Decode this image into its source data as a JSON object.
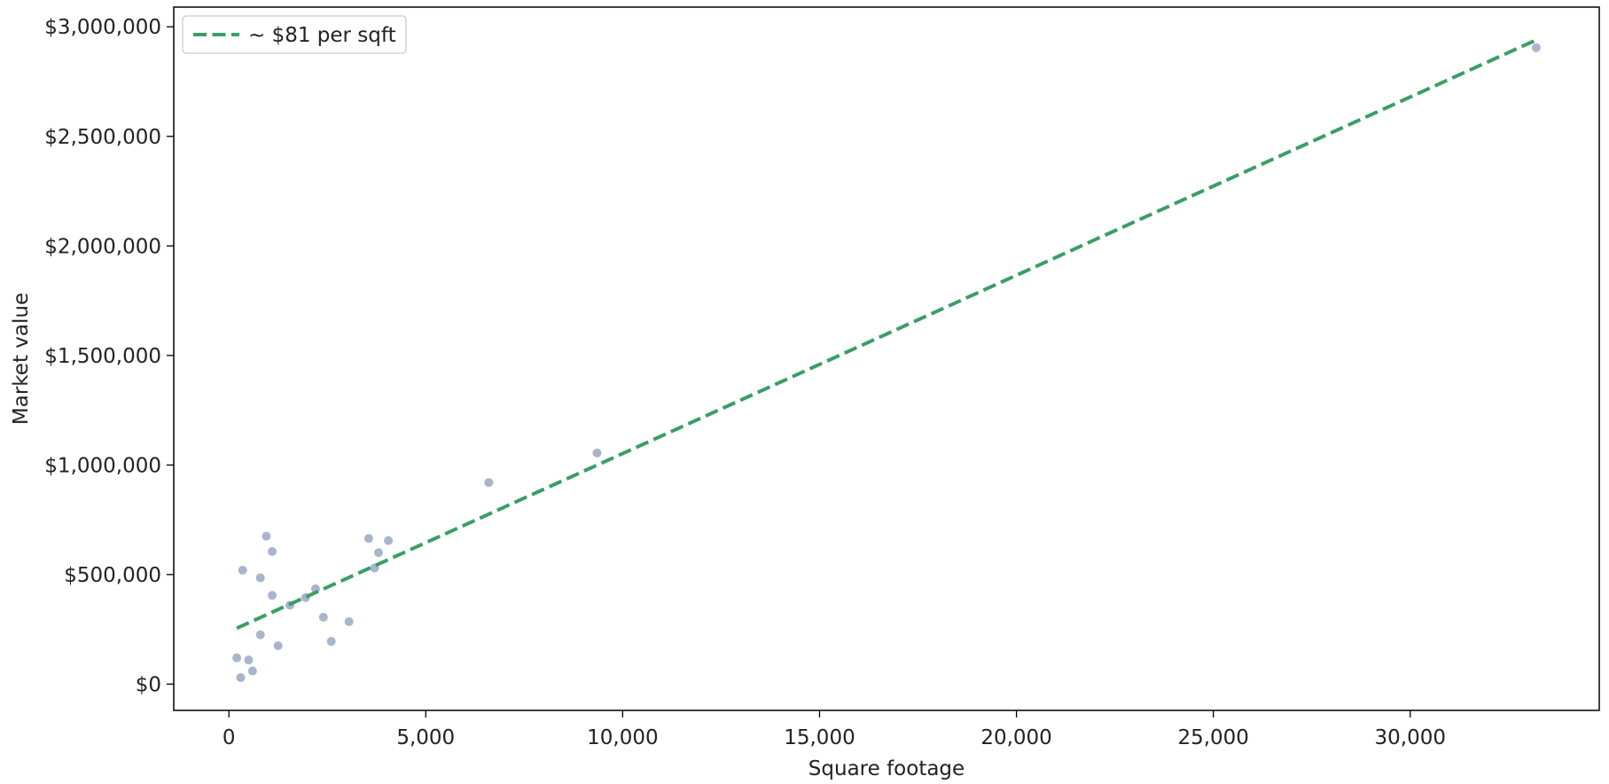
{
  "chart_data": {
    "type": "scatter",
    "title": "",
    "xlabel": "Square footage",
    "ylabel": "Market value",
    "xlim": [
      -1400,
      34800
    ],
    "ylim": [
      -120000,
      3090000
    ],
    "x_ticks": [
      0,
      5000,
      10000,
      15000,
      20000,
      25000,
      30000
    ],
    "x_tick_labels": [
      "0",
      "5,000",
      "10,000",
      "15,000",
      "20,000",
      "25,000",
      "30,000"
    ],
    "y_ticks": [
      0,
      500000,
      1000000,
      1500000,
      2000000,
      2500000,
      3000000
    ],
    "y_tick_labels": [
      "$0",
      "$500,000",
      "$1,000,000",
      "$1,500,000",
      "$2,000,000",
      "$2,500,000",
      "$3,000,000"
    ],
    "grid": false,
    "legend_position": "top-left",
    "colors": {
      "points": "#a9b5cc",
      "trend": "#3a9e66"
    },
    "series": [
      {
        "kind": "scatter",
        "points": [
          {
            "x": 200,
            "y": 120000
          },
          {
            "x": 300,
            "y": 30000
          },
          {
            "x": 350,
            "y": 520000
          },
          {
            "x": 500,
            "y": 110000
          },
          {
            "x": 600,
            "y": 60000
          },
          {
            "x": 800,
            "y": 225000
          },
          {
            "x": 800,
            "y": 485000
          },
          {
            "x": 950,
            "y": 675000
          },
          {
            "x": 1100,
            "y": 405000
          },
          {
            "x": 1100,
            "y": 605000
          },
          {
            "x": 1250,
            "y": 175000
          },
          {
            "x": 1550,
            "y": 360000
          },
          {
            "x": 1950,
            "y": 395000
          },
          {
            "x": 2200,
            "y": 435000
          },
          {
            "x": 2400,
            "y": 305000
          },
          {
            "x": 2600,
            "y": 195000
          },
          {
            "x": 3050,
            "y": 285000
          },
          {
            "x": 3550,
            "y": 665000
          },
          {
            "x": 3700,
            "y": 530000
          },
          {
            "x": 3800,
            "y": 600000
          },
          {
            "x": 4050,
            "y": 655000
          },
          {
            "x": 6600,
            "y": 920000
          },
          {
            "x": 9350,
            "y": 1055000
          },
          {
            "x": 33200,
            "y": 2905000
          }
        ]
      },
      {
        "kind": "line",
        "name": "~ $81 per sqft",
        "style": "dashed",
        "points": [
          {
            "x": 200,
            "y": 255000
          },
          {
            "x": 33200,
            "y": 2940000
          }
        ]
      }
    ]
  }
}
